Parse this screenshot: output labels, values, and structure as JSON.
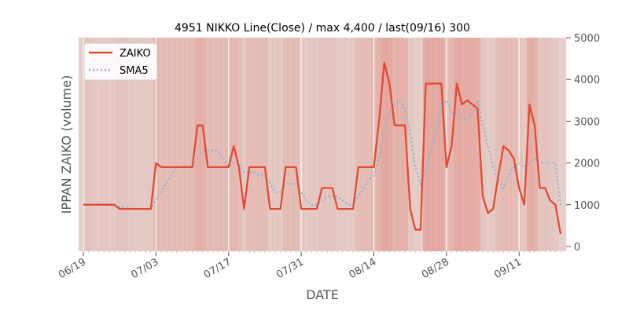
{
  "chart_data": {
    "type": "line",
    "title": "4951 NIKKO Line(Close) / max 4,400 / last(09/16) 300",
    "xlabel": "DATE",
    "ylabel": "IPPAN ZAIKO (volume)",
    "ylim": [
      0,
      5000
    ],
    "y_ticks": [
      "0",
      "1000",
      "2000",
      "3000",
      "4000",
      "5000"
    ],
    "x_ticks": [
      {
        "label": "06/19",
        "index": 0
      },
      {
        "label": "07/03",
        "index": 14
      },
      {
        "label": "07/17",
        "index": 28
      },
      {
        "label": "07/31",
        "index": 42
      },
      {
        "label": "08/14",
        "index": 56
      },
      {
        "label": "08/28",
        "index": 70
      },
      {
        "label": "09/11",
        "index": 84
      }
    ],
    "legend": {
      "placement": "top-left",
      "entries": [
        "ZAIKO",
        "SMA5"
      ]
    },
    "colors": {
      "zaiko": "#e24a33",
      "sma5": "#8eb4d4",
      "band_base": "#e5e5e5"
    },
    "series": [
      {
        "name": "ZAIKO",
        "style": "solid",
        "values": [
          1000,
          1000,
          1000,
          1000,
          1000,
          1000,
          1000,
          900,
          900,
          900,
          900,
          900,
          900,
          900,
          2000,
          1900,
          1900,
          1900,
          1900,
          1900,
          1900,
          1900,
          2900,
          2900,
          1900,
          1900,
          1900,
          1900,
          1900,
          2400,
          1900,
          900,
          1900,
          1900,
          1900,
          1900,
          900,
          900,
          900,
          1900,
          1900,
          1900,
          900,
          900,
          900,
          900,
          1400,
          1400,
          1400,
          900,
          900,
          900,
          900,
          1900,
          1900,
          1900,
          1900,
          3000,
          4400,
          3900,
          2900,
          2900,
          2900,
          900,
          400,
          400,
          3900,
          3900,
          3900,
          3900,
          1900,
          2400,
          3900,
          3400,
          3500,
          3400,
          3300,
          1200,
          800,
          900,
          1700,
          2400,
          2300,
          2100,
          1400,
          1000,
          3400,
          2900,
          1400,
          1400,
          1100,
          1000,
          300
        ]
      },
      {
        "name": "SMA5",
        "style": "dotted",
        "values": [
          1000,
          1000,
          1000,
          1000,
          1000,
          1000,
          980,
          960,
          940,
          920,
          900,
          900,
          900,
          900,
          1120,
          1320,
          1520,
          1720,
          1900,
          1900,
          1900,
          1900,
          2100,
          2300,
          2300,
          2300,
          2300,
          2100,
          1900,
          2000,
          2000,
          1780,
          1780,
          1780,
          1700,
          1700,
          1500,
          1300,
          1300,
          1500,
          1500,
          1500,
          1300,
          1100,
          1000,
          1000,
          1100,
          1200,
          1200,
          1200,
          1100,
          1000,
          1000,
          1200,
          1400,
          1600,
          1700,
          2100,
          2800,
          3200,
          3400,
          3500,
          3300,
          2700,
          1900,
          1500,
          1800,
          2300,
          2700,
          3400,
          3500,
          3200,
          3200,
          3100,
          3000,
          3200,
          3500,
          2900,
          2400,
          1900,
          1600,
          1400,
          1700,
          1900,
          2000,
          1900,
          2000,
          2100,
          2000,
          2000,
          2000,
          2000,
          1000
        ]
      },
      {
        "name": "",
        "style": "band",
        "values": [
          0.2,
          0.4,
          0.3,
          0.3,
          0.3,
          0.3,
          0.3,
          0.4,
          0.4,
          0.3,
          0.3,
          0.3,
          0.3,
          0.3,
          0.55,
          0.55,
          0.55,
          0.55,
          0.55,
          0.55,
          0.55,
          0.55,
          0.8,
          0.8,
          0.55,
          0.55,
          0.55,
          0.55,
          0.55,
          0.65,
          0.55,
          0.3,
          0.55,
          0.55,
          0.55,
          0.55,
          0.3,
          0.3,
          0.3,
          0.55,
          0.55,
          0.55,
          0.3,
          0.3,
          0.3,
          0.3,
          0.4,
          0.4,
          0.4,
          0.3,
          0.3,
          0.3,
          0.3,
          0.55,
          0.55,
          0.55,
          0.55,
          0.75,
          0.95,
          0.9,
          0.75,
          0.75,
          0.75,
          0.3,
          0.2,
          0.2,
          0.9,
          0.9,
          0.9,
          0.9,
          0.55,
          0.65,
          0.9,
          0.85,
          0.85,
          0.85,
          0.8,
          0.35,
          0.25,
          0.3,
          0.5,
          0.6,
          0.6,
          0.55,
          0.4,
          0.3,
          0.85,
          0.75,
          0.4,
          0.4,
          0.35,
          0.3,
          0.15
        ]
      }
    ]
  }
}
